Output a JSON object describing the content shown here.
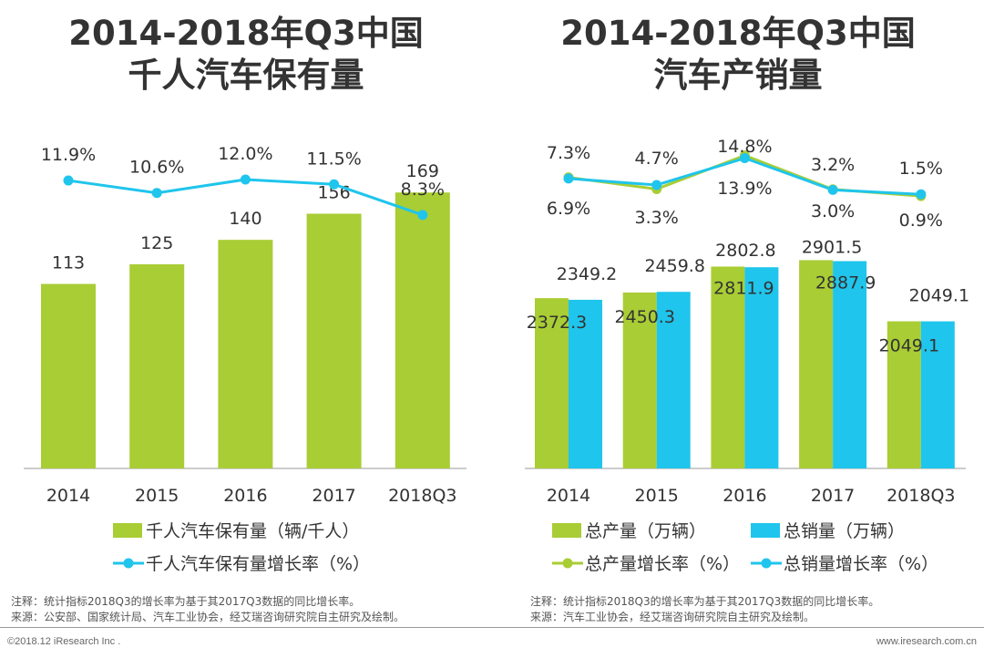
{
  "colors": {
    "green": "#a9cd34",
    "blue": "#1fc5ec",
    "text": "#333333",
    "axis": "#9a9a9a"
  },
  "chart_data": [
    {
      "type": "bar",
      "title_line1": "2014-2018年Q3中国",
      "title_line2": "千人汽车保有量",
      "categories": [
        "2014",
        "2015",
        "2016",
        "2017",
        "2018Q3"
      ],
      "series": [
        {
          "name": "千人汽车保有量（辆/千人）",
          "kind": "bar",
          "values": [
            113,
            125,
            140,
            156,
            169
          ],
          "labels": [
            "113",
            "125",
            "140",
            "156",
            "169"
          ]
        },
        {
          "name": "千人汽车保有量增长率（%）",
          "kind": "line",
          "values": [
            11.9,
            10.6,
            12.0,
            11.5,
            8.3
          ],
          "labels": [
            "11.9%",
            "10.6%",
            "12.0%",
            "11.5%",
            "8.3%"
          ]
        }
      ],
      "ylim": [
        0,
        240
      ],
      "note": "注释：统计指标2018Q3的增长率为基于其2017Q3数据的同比增长率。",
      "source": "来源：公安部、国家统计局、汽车工业协会，经艾瑞咨询研究院自主研究及绘制。"
    },
    {
      "type": "bar",
      "title_line1": "2014-2018年Q3中国",
      "title_line2": "汽车产销量",
      "categories": [
        "2014",
        "2015",
        "2016",
        "2017",
        "2018Q3"
      ],
      "series": [
        {
          "name": "总产量（万辆）",
          "kind": "bar",
          "values": [
            2372.3,
            2450.3,
            2811.9,
            2901.5,
            2049.1
          ],
          "labels": [
            "2372.3",
            "2450.3",
            "2811.9",
            "2901.5",
            "2049.1"
          ]
        },
        {
          "name": "总销量（万辆）",
          "kind": "bar",
          "values": [
            2349.2,
            2459.8,
            2802.8,
            2887.9,
            2049.1
          ],
          "labels": [
            "2349.2",
            "2459.8",
            "2802.8",
            "2887.9",
            "2049.1"
          ]
        },
        {
          "name": "总产量增长率（%）",
          "kind": "line",
          "values": [
            7.3,
            3.3,
            14.8,
            3.2,
            0.9
          ],
          "labels": [
            "7.3%",
            "3.3%",
            "14.8%",
            "3.2%",
            "0.9%"
          ]
        },
        {
          "name": "总销量增长率（%）",
          "kind": "line",
          "values": [
            6.9,
            4.7,
            13.9,
            3.0,
            1.5
          ],
          "labels": [
            "6.9%",
            "4.7%",
            "13.9%",
            "3.0%",
            "1.5%"
          ]
        }
      ],
      "ylim": [
        0,
        4100
      ],
      "note": "注释：统计指标2018Q3的增长率为基于其2017Q3数据的同比增长率。",
      "source": "来源：汽车工业协会，经艾瑞咨询研究院自主研究及绘制。"
    }
  ],
  "footer": {
    "copyright": "©2018.12 iResearch Inc .",
    "website": "www.iresearch.com.cn"
  }
}
